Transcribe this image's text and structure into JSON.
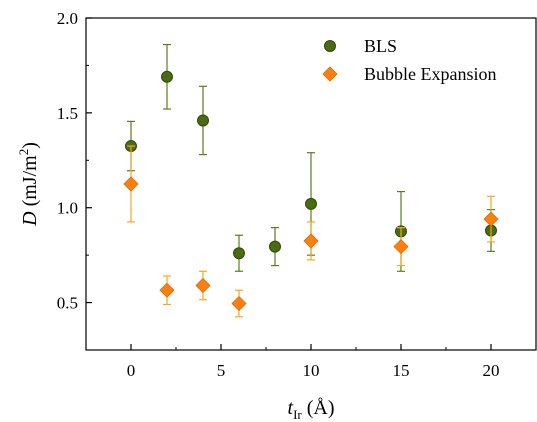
{
  "chart_data": {
    "type": "scatter",
    "xlabel": {
      "main": "t",
      "sub": "Ir",
      "unit": " (Å)"
    },
    "ylabel": {
      "main": "D",
      "unit_pre": " (mJ/m",
      "unit_sup": "2",
      "unit_post": ")"
    },
    "xlim": [
      -2.5,
      22.5
    ],
    "ylim": [
      0.25,
      2.0
    ],
    "xticks": [
      0,
      5,
      10,
      15,
      20
    ],
    "yticks": [
      0.5,
      1.0,
      1.5,
      2.0
    ],
    "xtick_labels": [
      "0",
      "5",
      "10",
      "15",
      "20"
    ],
    "ytick_labels": [
      "0.5",
      "1.0",
      "1.5",
      "2.0"
    ],
    "legend_position": "top-right",
    "series": [
      {
        "name": "BLS",
        "marker": "circle",
        "color": "#4a6b12",
        "x": [
          0,
          2,
          4,
          6,
          8,
          10,
          15,
          20
        ],
        "y": [
          1.325,
          1.69,
          1.46,
          0.76,
          0.795,
          1.02,
          0.875,
          0.88
        ],
        "err": [
          0.13,
          0.17,
          0.18,
          0.095,
          0.1,
          0.27,
          0.21,
          0.11
        ]
      },
      {
        "name": "Bubble Expansion",
        "marker": "diamond",
        "color": "#ff7f0e",
        "x": [
          0,
          2,
          4,
          6,
          10,
          15,
          20
        ],
        "y": [
          1.125,
          0.565,
          0.59,
          0.495,
          0.825,
          0.795,
          0.94
        ],
        "err": [
          0.2,
          0.075,
          0.075,
          0.07,
          0.1,
          0.1,
          0.12
        ]
      }
    ]
  }
}
